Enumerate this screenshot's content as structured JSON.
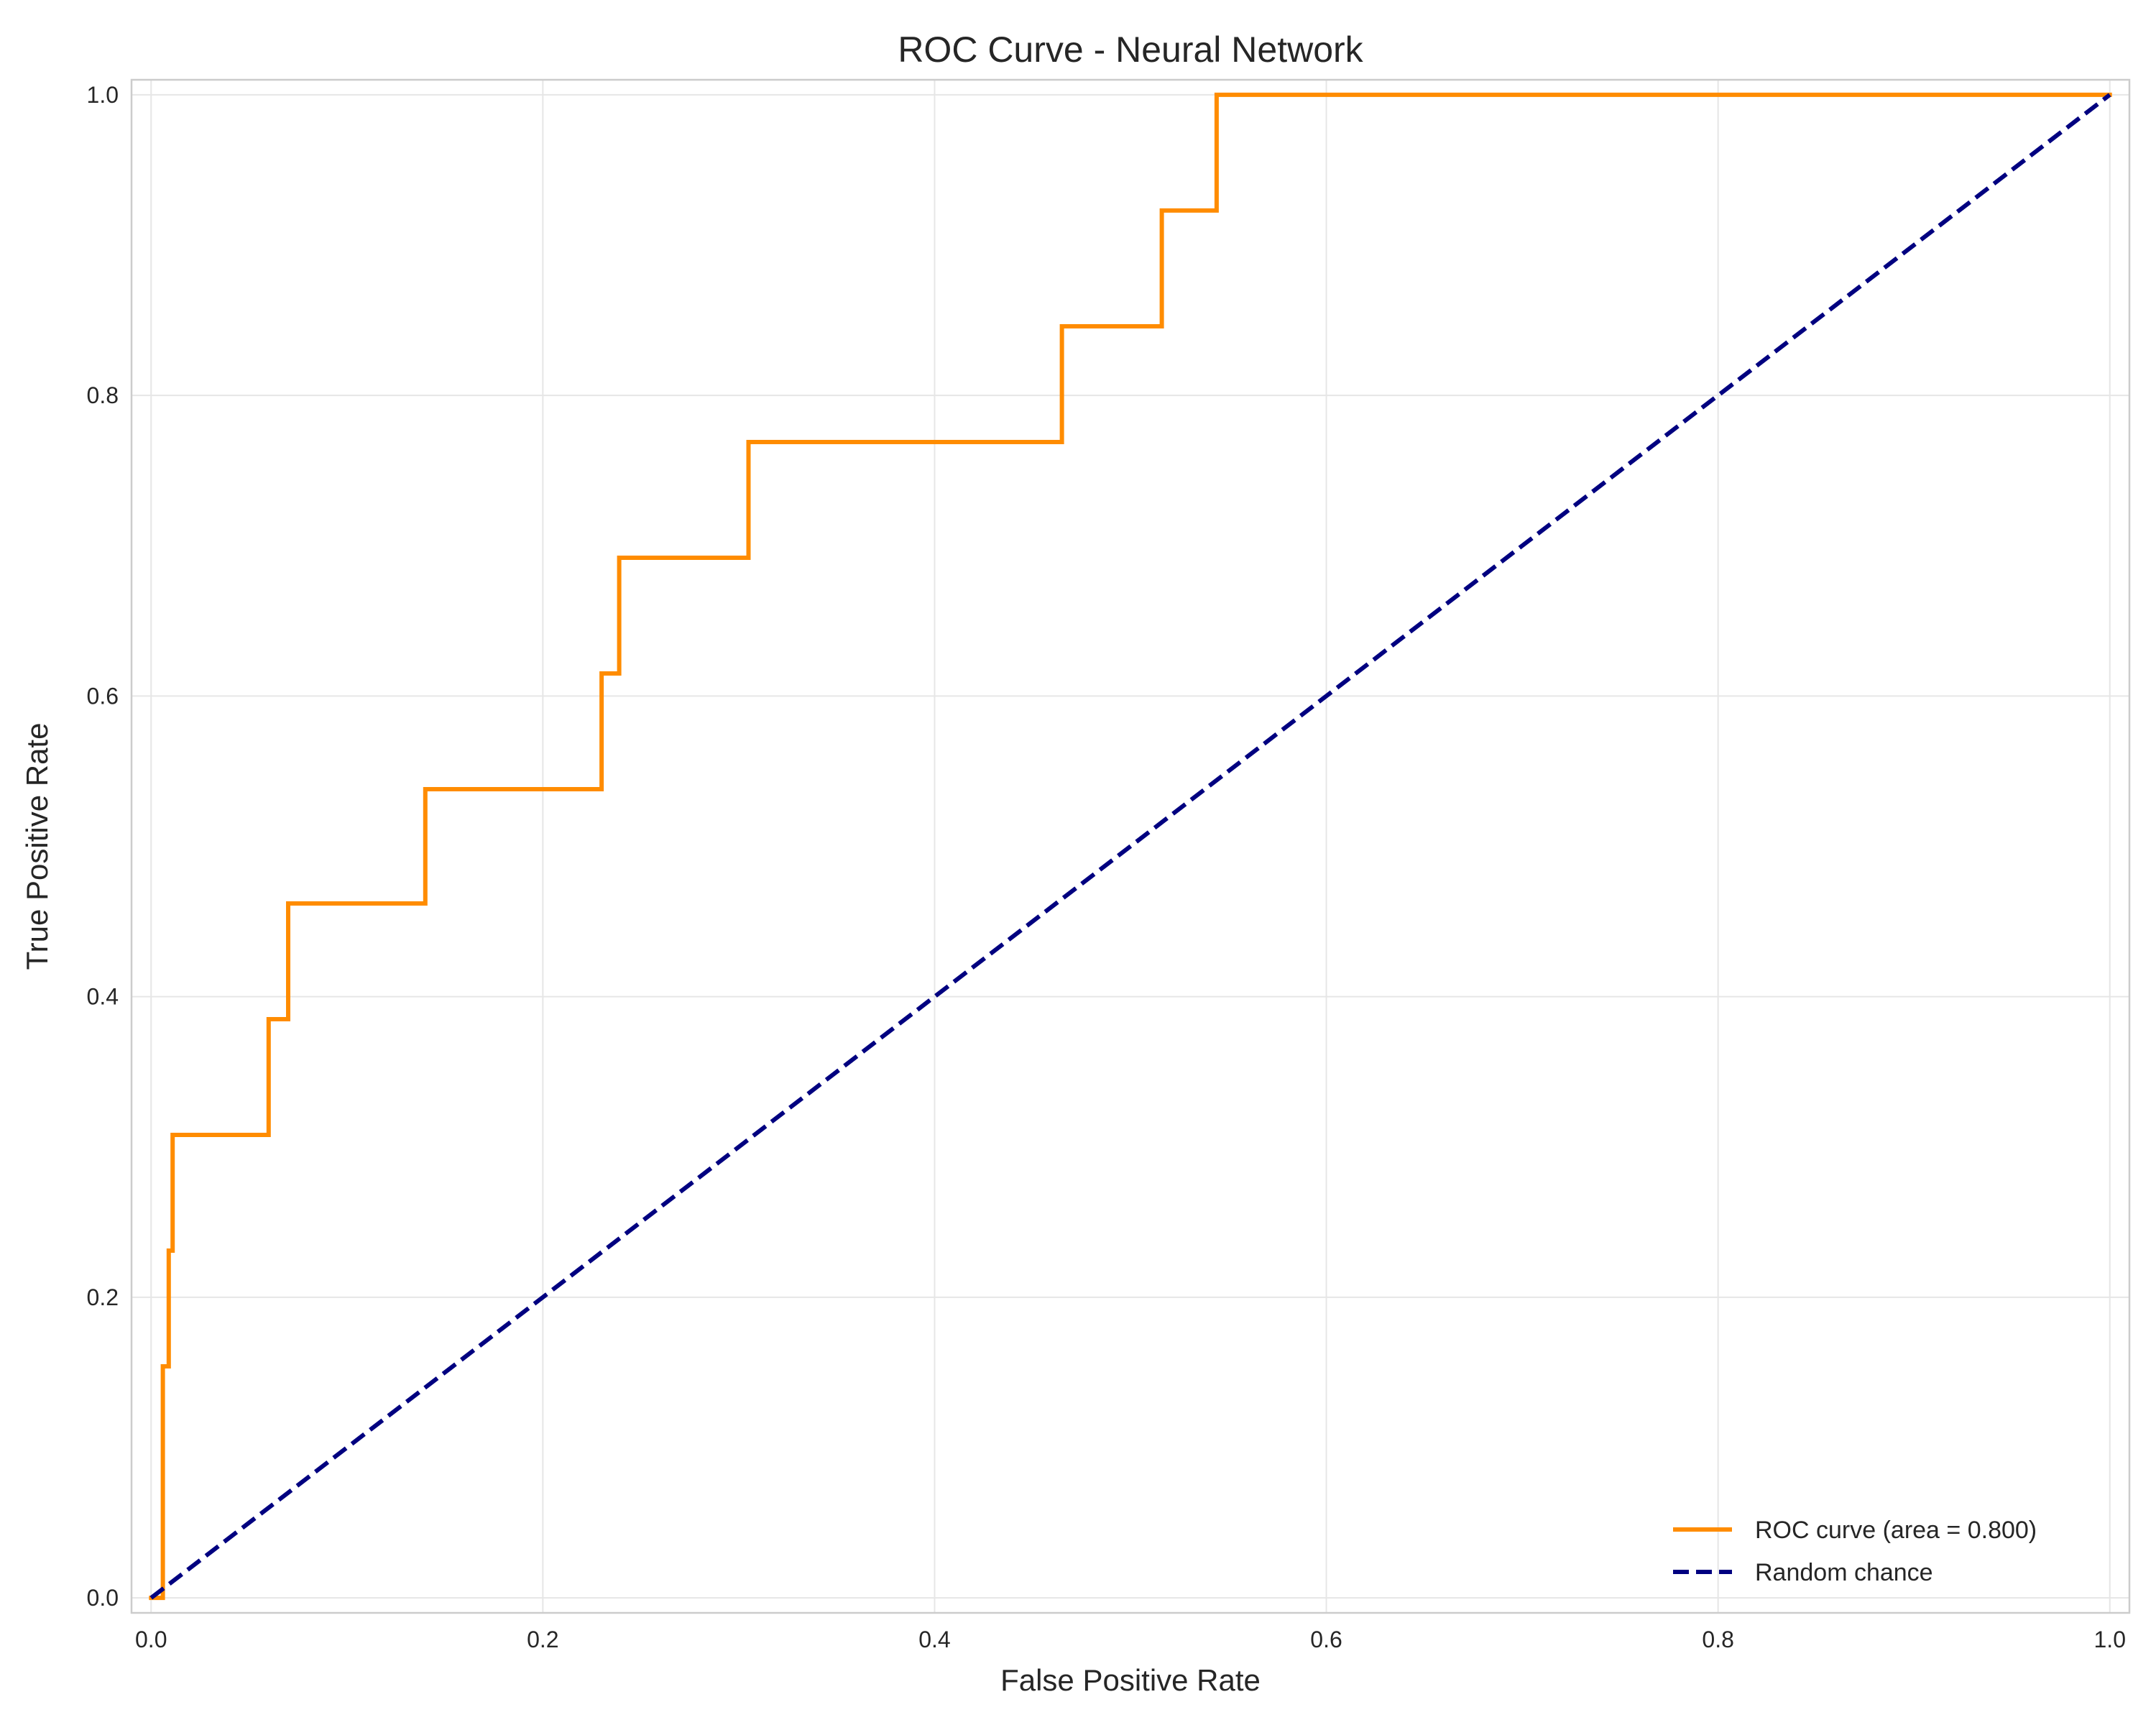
{
  "chart_data": {
    "type": "line",
    "title": "ROC Curve - Neural Network",
    "xlabel": "False Positive Rate",
    "ylabel": "True Positive Rate",
    "xlim": [
      -0.01,
      1.01
    ],
    "ylim": [
      -0.01,
      1.01
    ],
    "x_ticks": [
      0.0,
      0.2,
      0.4,
      0.6,
      0.8,
      1.0
    ],
    "x_tick_labels": [
      "0.0",
      "0.2",
      "0.4",
      "0.6",
      "0.8",
      "1.0"
    ],
    "y_ticks": [
      0.0,
      0.2,
      0.4,
      0.6,
      0.8,
      1.0
    ],
    "y_tick_labels": [
      "0.0",
      "0.2",
      "0.4",
      "0.6",
      "0.8",
      "1.0"
    ],
    "grid": true,
    "legend_position": "lower-right",
    "series": [
      {
        "name": "ROC curve (area = 0.800)",
        "color": "#ff8c00",
        "style": "solid",
        "step": true,
        "x": [
          0.0,
          0.006,
          0.006,
          0.009,
          0.009,
          0.011,
          0.011,
          0.06,
          0.06,
          0.07,
          0.07,
          0.14,
          0.14,
          0.23,
          0.23,
          0.239,
          0.239,
          0.305,
          0.305,
          0.465,
          0.465,
          0.516,
          0.516,
          0.544,
          0.544,
          1.0
        ],
        "y": [
          0.0,
          0.0,
          0.154,
          0.154,
          0.231,
          0.231,
          0.308,
          0.308,
          0.385,
          0.385,
          0.462,
          0.462,
          0.538,
          0.538,
          0.615,
          0.615,
          0.692,
          0.692,
          0.769,
          0.769,
          0.846,
          0.846,
          0.923,
          0.923,
          1.0,
          1.0
        ]
      },
      {
        "name": "Random chance",
        "color": "#000080",
        "style": "dashed",
        "x": [
          0.0,
          1.0
        ],
        "y": [
          0.0,
          1.0
        ]
      }
    ]
  }
}
